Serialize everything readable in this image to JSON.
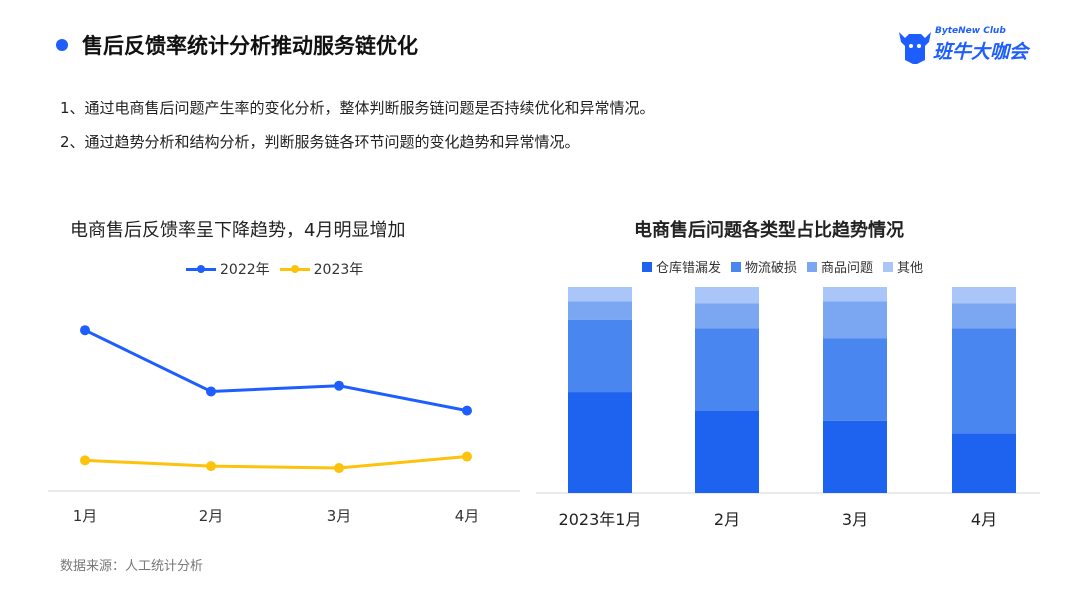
{
  "header": {
    "title": "售后反馈率统计分析推动服务链优化",
    "logo_sub": "ByteNew Club",
    "logo_main": "班牛大咖会"
  },
  "descriptions": [
    "1、通过电商售后问题产生率的变化分析，整体判断服务链问题是否持续优化和异常情况。",
    "2、通过趋势分析和结构分析，判断服务链各环节问题的变化趋势和异常情况。"
  ],
  "source": "数据来源：人工统计分析",
  "colors": {
    "accent": "#1e5eff",
    "line2022": "#1e5eff",
    "line2023": "#fcc20c",
    "stack": [
      "#1e63f0",
      "#4a86f0",
      "#7aa6f2",
      "#aac6f8"
    ]
  },
  "chart_data": [
    {
      "type": "line",
      "title": "电商售后反馈率呈下降趋势，4月明显增加",
      "categories": [
        "1月",
        "2月",
        "3月",
        "4月"
      ],
      "series": [
        {
          "name": "2022年",
          "values": [
            0.84,
            0.52,
            0.55,
            0.42
          ]
        },
        {
          "name": "2023年",
          "values": [
            0.16,
            0.13,
            0.12,
            0.18
          ]
        }
      ],
      "ylim": [
        0,
        1.05
      ],
      "grid": false,
      "legend": "top",
      "data_labels_obscured": true
    },
    {
      "type": "bar",
      "stacked": true,
      "title": "电商售后问题各类型占比趋势情况",
      "categories": [
        "2023年1月",
        "2月",
        "3月",
        "4月"
      ],
      "series": [
        {
          "name": "仓库错漏发",
          "values": [
            49,
            40,
            35,
            29
          ]
        },
        {
          "name": "物流破损",
          "values": [
            35,
            40,
            40,
            51
          ]
        },
        {
          "name": "商品问题",
          "values": [
            9,
            12,
            18,
            12
          ]
        },
        {
          "name": "其他",
          "values": [
            7,
            8,
            7,
            8
          ]
        }
      ],
      "ylim": [
        0,
        100
      ],
      "grid": false,
      "legend": "top",
      "data_labels_obscured": true
    }
  ]
}
